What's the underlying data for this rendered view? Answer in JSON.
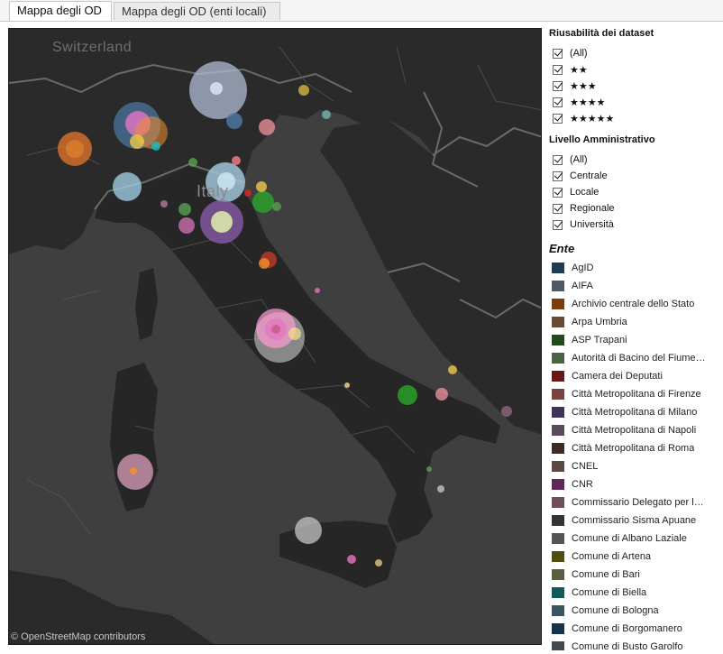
{
  "tabs": [
    {
      "label": "Mappa degli OD",
      "active": true
    },
    {
      "label": "Mappa degli OD (enti locali)",
      "active": false
    }
  ],
  "map": {
    "attribution": "© OpenStreetMap contributors",
    "labels": {
      "switzerland": "Switzerland",
      "italy": "Italy"
    }
  },
  "filters": {
    "riusabilita": {
      "title": "Riusabilità dei dataset",
      "options": [
        "(All)",
        "★★",
        "★★★",
        "★★★★",
        "★★★★★"
      ]
    },
    "livello": {
      "title": "Livello Amministrativo",
      "options": [
        "(All)",
        "Centrale",
        "Locale",
        "Regionale",
        "Università"
      ]
    }
  },
  "legend": {
    "title": "Ente",
    "items": [
      {
        "label": "AgID",
        "color": "#1f3b52"
      },
      {
        "label": "AIFA",
        "color": "#4d5a66"
      },
      {
        "label": "Archivio centrale dello Stato",
        "color": "#7a3e0c"
      },
      {
        "label": "Arpa Umbria",
        "color": "#6b4a35"
      },
      {
        "label": "ASP Trapani",
        "color": "#1f4a1a"
      },
      {
        "label": "Autorità di Bacino del Fiume…",
        "color": "#4a6144"
      },
      {
        "label": "Camera dei Deputati",
        "color": "#6a1616"
      },
      {
        "label": "Città Metropolitana di Firenze",
        "color": "#7a4242"
      },
      {
        "label": "Città Metropolitana di Milano",
        "color": "#41325c"
      },
      {
        "label": "Città Metropolitana di Napoli",
        "color": "#5b4a5e"
      },
      {
        "label": "Città Metropolitana di Roma",
        "color": "#3d2a22"
      },
      {
        "label": "CNEL",
        "color": "#5b4a44"
      },
      {
        "label": "CNR",
        "color": "#5e2a55"
      },
      {
        "label": "Commissario Delegato per l…",
        "color": "#6e4e5c"
      },
      {
        "label": "Commissario Sisma Apuane",
        "color": "#333333"
      },
      {
        "label": "Comune di Albano Laziale",
        "color": "#555555"
      },
      {
        "label": "Comune di Artena",
        "color": "#4e4e12"
      },
      {
        "label": "Comune di Bari",
        "color": "#5a5e3e"
      },
      {
        "label": "Comune di Biella",
        "color": "#135a5a"
      },
      {
        "label": "Comune di Bologna",
        "color": "#3d5560"
      },
      {
        "label": "Comune di Borgomanero",
        "color": "#17324a"
      },
      {
        "label": "Comune di Busto Garolfo",
        "color": "#3f4a52"
      }
    ]
  }
}
